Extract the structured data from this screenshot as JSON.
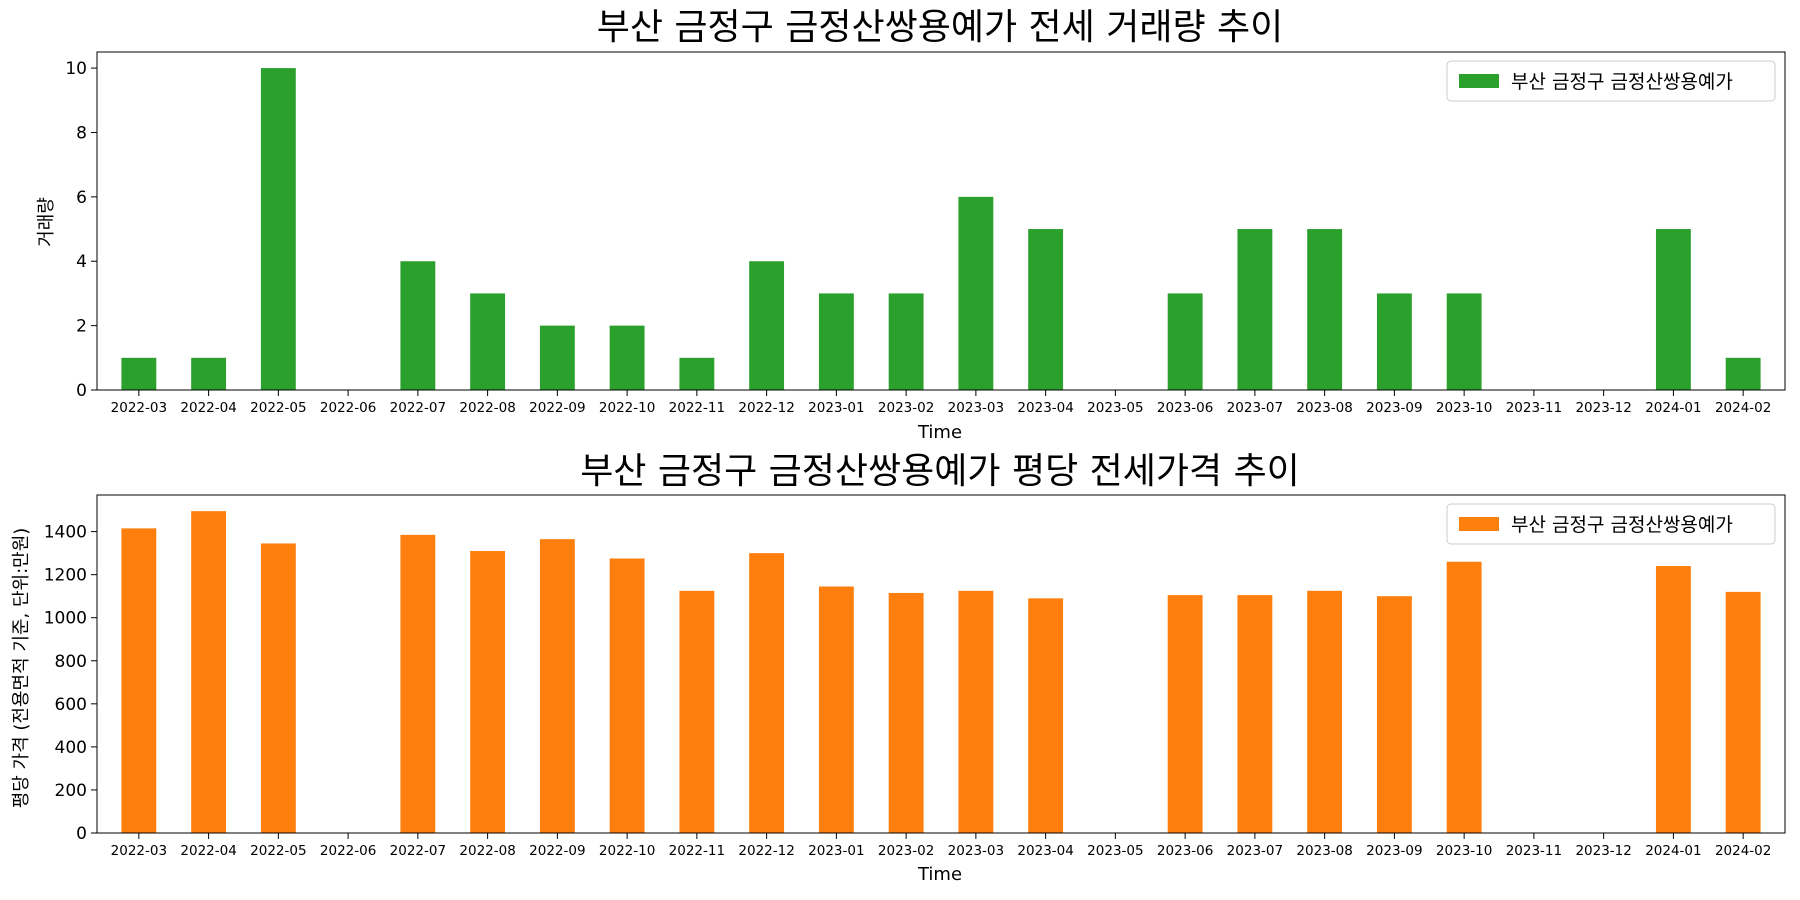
{
  "chart_data": [
    {
      "type": "bar",
      "title": "부산 금정구 금정산쌍용예가 전세 거래량 추이",
      "xlabel": "Time",
      "ylabel": "거래량",
      "categories": [
        "2022-03",
        "2022-04",
        "2022-05",
        "2022-06",
        "2022-07",
        "2022-08",
        "2022-09",
        "2022-10",
        "2022-11",
        "2022-12",
        "2023-01",
        "2023-02",
        "2023-03",
        "2023-04",
        "2023-05",
        "2023-06",
        "2023-07",
        "2023-08",
        "2023-09",
        "2023-10",
        "2023-11",
        "2023-12",
        "2024-01",
        "2024-02"
      ],
      "series": [
        {
          "name": "부산 금정구 금정산쌍용예가",
          "color": "#2ca02c",
          "values": [
            1,
            1,
            10,
            0,
            4,
            3,
            2,
            2,
            1,
            4,
            3,
            3,
            6,
            5,
            0,
            3,
            5,
            5,
            3,
            3,
            0,
            0,
            5,
            1
          ]
        }
      ],
      "ylim": [
        0,
        10.5
      ],
      "yticks": [
        0,
        2,
        4,
        6,
        8,
        10
      ],
      "grid": false,
      "legend_position": "upper right"
    },
    {
      "type": "bar",
      "title": "부산 금정구 금정산쌍용예가 평당 전세가격 추이",
      "xlabel": "Time",
      "ylabel": "평당 가격 (전용면적 기준, 단위:만원)",
      "categories": [
        "2022-03",
        "2022-04",
        "2022-05",
        "2022-06",
        "2022-07",
        "2022-08",
        "2022-09",
        "2022-10",
        "2022-11",
        "2022-12",
        "2023-01",
        "2023-02",
        "2023-03",
        "2023-04",
        "2023-05",
        "2023-06",
        "2023-07",
        "2023-08",
        "2023-09",
        "2023-10",
        "2023-11",
        "2023-12",
        "2024-01",
        "2024-02"
      ],
      "series": [
        {
          "name": "부산 금정구 금정산쌍용예가",
          "color": "#ff7f0e",
          "values": [
            1415,
            1495,
            1345,
            null,
            1385,
            1310,
            1365,
            1275,
            1125,
            1300,
            1145,
            1115,
            1125,
            1090,
            null,
            1105,
            1105,
            1125,
            1100,
            1260,
            null,
            null,
            1240,
            1120
          ]
        }
      ],
      "ylim": [
        0,
        1570
      ],
      "yticks": [
        0,
        200,
        400,
        600,
        800,
        1000,
        1200,
        1400
      ],
      "grid": false,
      "legend_position": "upper right"
    }
  ]
}
